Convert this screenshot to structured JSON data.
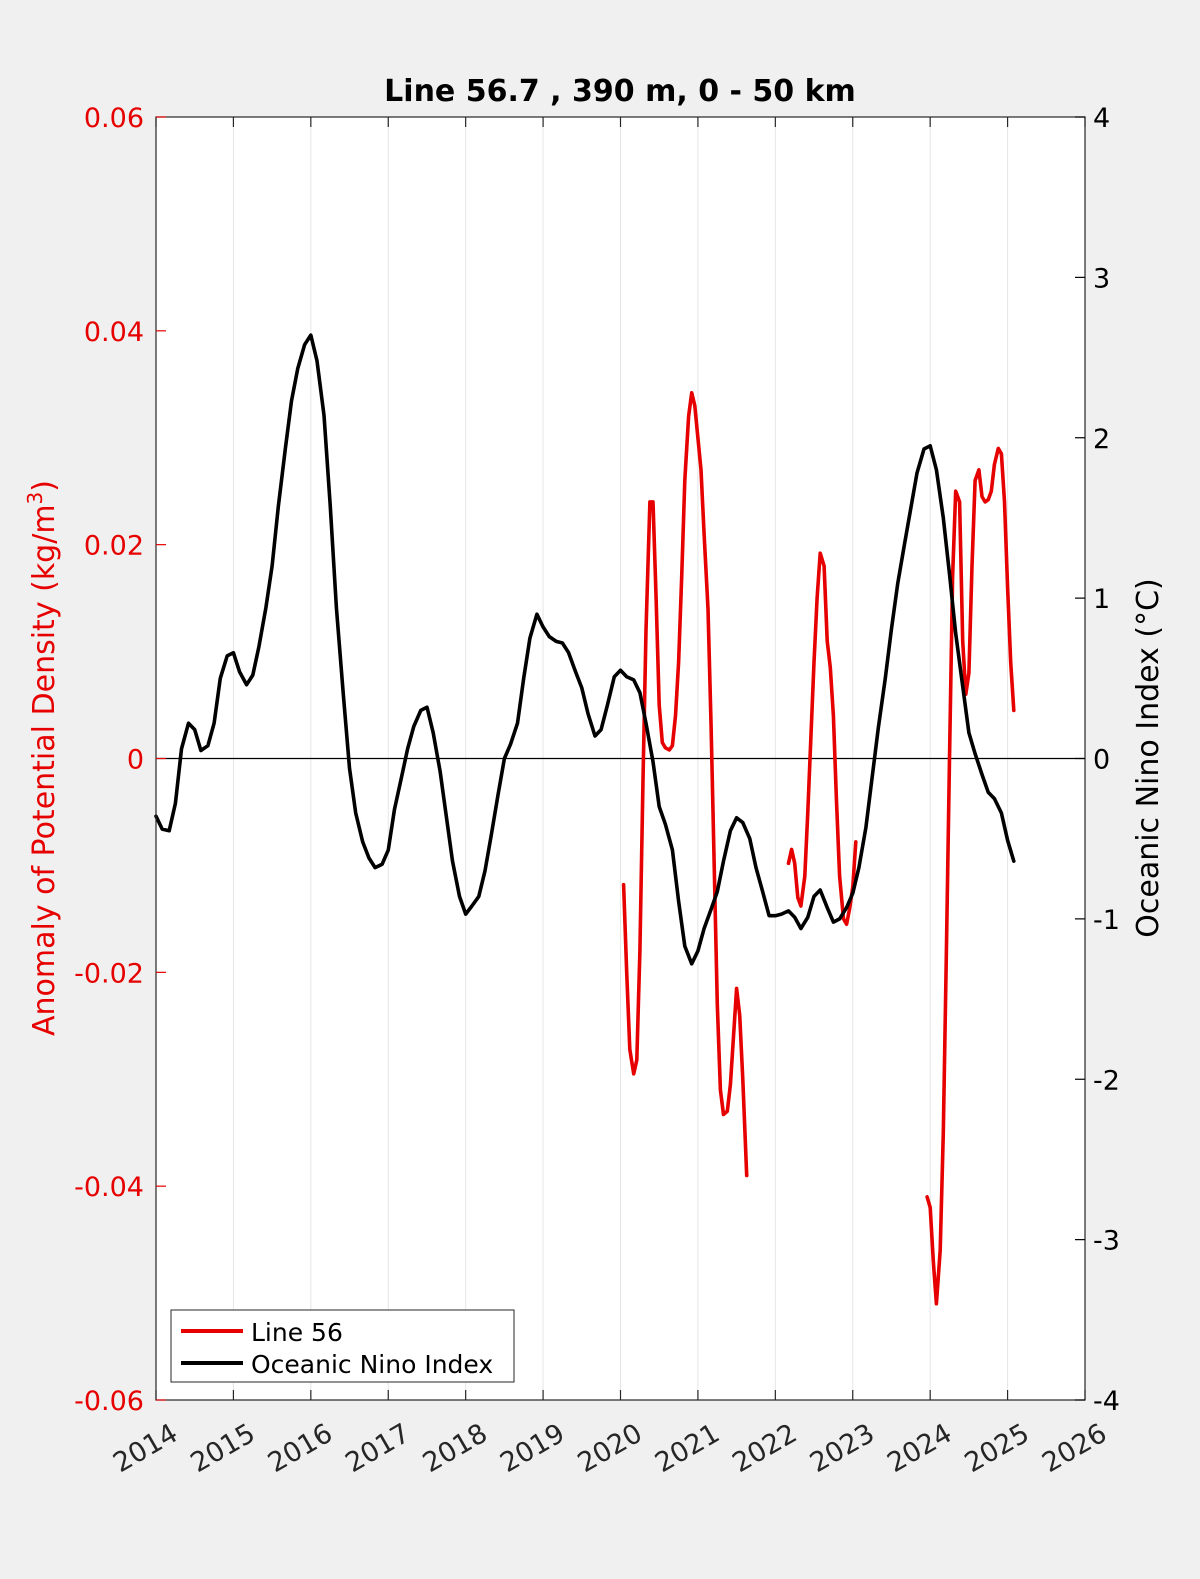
{
  "chart_data": {
    "type": "line",
    "title": "Line 56.7 , 390 m, 0 - 50 km",
    "xlabel": "",
    "ylabel_left": "Anomaly of Potential Density (kg/m³)",
    "ylabel_left_main": "Anomaly of Potential Density (kg/m",
    "ylabel_left_sup": "3",
    "ylabel_left_end": ")",
    "ylabel_right": "Oceanic Nino Index (°C)",
    "xlim": [
      2014,
      2026
    ],
    "ylim_left": [
      -0.06,
      0.06
    ],
    "ylim_right": [
      -4,
      4
    ],
    "x_ticks": [
      2014,
      2015,
      2016,
      2017,
      2018,
      2019,
      2020,
      2021,
      2022,
      2023,
      2024,
      2025,
      2026
    ],
    "x_tick_labels": [
      "2014",
      "2015",
      "2016",
      "2017",
      "2018",
      "2019",
      "2020",
      "2021",
      "2022",
      "2023",
      "2024",
      "2025",
      "2026"
    ],
    "y_left_ticks": [
      0.06,
      0.04,
      0.02,
      0,
      -0.02,
      -0.04,
      -0.06
    ],
    "y_left_tick_labels": [
      "0.06",
      "0.04",
      "0.02",
      "0",
      "-0.02",
      "-0.04",
      "-0.06"
    ],
    "y_right_ticks": [
      4,
      3,
      2,
      1,
      0,
      -1,
      -2,
      -3,
      -4
    ],
    "y_right_tick_labels": [
      "4",
      "3",
      "2",
      "1",
      "0",
      "-1",
      "-2",
      "-3",
      "-4"
    ],
    "grid": "vertical",
    "zero_line": true,
    "legend": {
      "position": "bottom-left",
      "entries": [
        {
          "label": "Line 56",
          "color": "#e60000"
        },
        {
          "label": "Oceanic Nino Index",
          "color": "#000000"
        }
      ]
    },
    "colors": {
      "left_axis": "#e60000",
      "right_axis": "#000000",
      "background": "#f0f0f0",
      "plot_background": "#ffffff"
    },
    "series": [
      {
        "name": "Line 56",
        "axis": "left",
        "color": "#e60000",
        "segments": [
          [
            [
              2020.04,
              -0.0118
            ],
            [
              2020.08,
              -0.02
            ],
            [
              2020.12,
              -0.0272
            ],
            [
              2020.17,
              -0.0295
            ],
            [
              2020.21,
              -0.0282
            ],
            [
              2020.25,
              -0.018
            ],
            [
              2020.29,
              -0.002
            ],
            [
              2020.33,
              0.012
            ],
            [
              2020.38,
              0.024
            ],
            [
              2020.42,
              0.024
            ],
            [
              2020.46,
              0.015
            ],
            [
              2020.5,
              0.005
            ],
            [
              2020.54,
              0.0015
            ],
            [
              2020.58,
              0.001
            ],
            [
              2020.63,
              0.0008
            ],
            [
              2020.67,
              0.0012
            ],
            [
              2020.71,
              0.004
            ],
            [
              2020.75,
              0.009
            ],
            [
              2020.79,
              0.017
            ],
            [
              2020.83,
              0.026
            ],
            [
              2020.88,
              0.032
            ],
            [
              2020.92,
              0.0342
            ],
            [
              2020.96,
              0.033
            ],
            [
              2021.0,
              0.03
            ],
            [
              2021.04,
              0.027
            ],
            [
              2021.08,
              0.021
            ],
            [
              2021.13,
              0.014
            ],
            [
              2021.17,
              0.003
            ],
            [
              2021.21,
              -0.01
            ],
            [
              2021.25,
              -0.023
            ],
            [
              2021.29,
              -0.031
            ],
            [
              2021.33,
              -0.0333
            ],
            [
              2021.38,
              -0.033
            ],
            [
              2021.42,
              -0.0305
            ],
            [
              2021.46,
              -0.026
            ],
            [
              2021.5,
              -0.0215
            ],
            [
              2021.54,
              -0.024
            ],
            [
              2021.58,
              -0.03
            ],
            [
              2021.63,
              -0.039
            ]
          ],
          [
            [
              2022.17,
              -0.0098
            ],
            [
              2022.21,
              -0.0085
            ],
            [
              2022.25,
              -0.0098
            ],
            [
              2022.29,
              -0.013
            ],
            [
              2022.33,
              -0.0138
            ],
            [
              2022.38,
              -0.011
            ],
            [
              2022.42,
              -0.005
            ],
            [
              2022.46,
              0.002
            ],
            [
              2022.5,
              0.009
            ],
            [
              2022.54,
              0.015
            ],
            [
              2022.58,
              0.0192
            ],
            [
              2022.63,
              0.018
            ],
            [
              2022.67,
              0.011
            ],
            [
              2022.71,
              0.0085
            ],
            [
              2022.75,
              0.004
            ],
            [
              2022.79,
              -0.004
            ],
            [
              2022.83,
              -0.011
            ],
            [
              2022.88,
              -0.015
            ],
            [
              2022.92,
              -0.0155
            ],
            [
              2022.96,
              -0.014
            ],
            [
              2023.0,
              -0.012
            ],
            [
              2023.04,
              -0.0078
            ]
          ],
          [
            [
              2023.96,
              -0.041
            ],
            [
              2024.0,
              -0.042
            ],
            [
              2024.04,
              -0.047
            ],
            [
              2024.08,
              -0.051
            ],
            [
              2024.13,
              -0.046
            ],
            [
              2024.17,
              -0.035
            ],
            [
              2024.21,
              -0.018
            ],
            [
              2024.25,
              0.0
            ],
            [
              2024.29,
              0.017
            ],
            [
              2024.33,
              0.025
            ],
            [
              2024.38,
              0.024
            ],
            [
              2024.42,
              0.011
            ],
            [
              2024.46,
              0.006
            ],
            [
              2024.5,
              0.008
            ],
            [
              2024.54,
              0.018
            ],
            [
              2024.58,
              0.026
            ],
            [
              2024.63,
              0.027
            ],
            [
              2024.67,
              0.0245
            ],
            [
              2024.71,
              0.024
            ],
            [
              2024.75,
              0.0242
            ],
            [
              2024.79,
              0.025
            ],
            [
              2024.83,
              0.0275
            ],
            [
              2024.88,
              0.029
            ],
            [
              2024.92,
              0.0285
            ],
            [
              2024.96,
              0.024
            ],
            [
              2025.0,
              0.016
            ],
            [
              2025.04,
              0.009
            ],
            [
              2025.08,
              0.0045
            ]
          ]
        ]
      },
      {
        "name": "Oceanic Nino Index",
        "axis": "right",
        "color": "#000000",
        "points": [
          [
            2014.0,
            -0.36
          ],
          [
            2014.08,
            -0.44
          ],
          [
            2014.17,
            -0.45
          ],
          [
            2014.25,
            -0.28
          ],
          [
            2014.33,
            0.06
          ],
          [
            2014.42,
            0.22
          ],
          [
            2014.5,
            0.18
          ],
          [
            2014.58,
            0.05
          ],
          [
            2014.67,
            0.08
          ],
          [
            2014.75,
            0.22
          ],
          [
            2014.83,
            0.5
          ],
          [
            2014.92,
            0.64
          ],
          [
            2015.0,
            0.66
          ],
          [
            2015.08,
            0.54
          ],
          [
            2015.17,
            0.46
          ],
          [
            2015.25,
            0.52
          ],
          [
            2015.33,
            0.7
          ],
          [
            2015.42,
            0.94
          ],
          [
            2015.5,
            1.2
          ],
          [
            2015.58,
            1.57
          ],
          [
            2015.67,
            1.93
          ],
          [
            2015.75,
            2.23
          ],
          [
            2015.83,
            2.43
          ],
          [
            2015.92,
            2.58
          ],
          [
            2016.0,
            2.64
          ],
          [
            2016.08,
            2.48
          ],
          [
            2016.17,
            2.14
          ],
          [
            2016.25,
            1.58
          ],
          [
            2016.33,
            0.94
          ],
          [
            2016.42,
            0.4
          ],
          [
            2016.5,
            -0.06
          ],
          [
            2016.58,
            -0.34
          ],
          [
            2016.67,
            -0.52
          ],
          [
            2016.75,
            -0.62
          ],
          [
            2016.83,
            -0.68
          ],
          [
            2016.92,
            -0.66
          ],
          [
            2017.0,
            -0.57
          ],
          [
            2017.08,
            -0.32
          ],
          [
            2017.17,
            -0.12
          ],
          [
            2017.25,
            0.06
          ],
          [
            2017.33,
            0.2
          ],
          [
            2017.42,
            0.3
          ],
          [
            2017.5,
            0.32
          ],
          [
            2017.58,
            0.16
          ],
          [
            2017.67,
            -0.08
          ],
          [
            2017.75,
            -0.36
          ],
          [
            2017.83,
            -0.64
          ],
          [
            2017.92,
            -0.86
          ],
          [
            2018.0,
            -0.97
          ],
          [
            2018.08,
            -0.92
          ],
          [
            2018.17,
            -0.86
          ],
          [
            2018.25,
            -0.7
          ],
          [
            2018.33,
            -0.48
          ],
          [
            2018.42,
            -0.22
          ],
          [
            2018.5,
            0.0
          ],
          [
            2018.58,
            0.09
          ],
          [
            2018.67,
            0.22
          ],
          [
            2018.75,
            0.5
          ],
          [
            2018.83,
            0.75
          ],
          [
            2018.92,
            0.9
          ],
          [
            2019.0,
            0.82
          ],
          [
            2019.08,
            0.76
          ],
          [
            2019.17,
            0.73
          ],
          [
            2019.25,
            0.72
          ],
          [
            2019.33,
            0.66
          ],
          [
            2019.42,
            0.54
          ],
          [
            2019.5,
            0.44
          ],
          [
            2019.58,
            0.28
          ],
          [
            2019.67,
            0.14
          ],
          [
            2019.75,
            0.18
          ],
          [
            2019.83,
            0.33
          ],
          [
            2019.92,
            0.51
          ],
          [
            2020.0,
            0.55
          ],
          [
            2020.08,
            0.51
          ],
          [
            2020.17,
            0.49
          ],
          [
            2020.25,
            0.41
          ],
          [
            2020.33,
            0.22
          ],
          [
            2020.42,
            -0.02
          ],
          [
            2020.5,
            -0.3
          ],
          [
            2020.58,
            -0.41
          ],
          [
            2020.67,
            -0.57
          ],
          [
            2020.75,
            -0.89
          ],
          [
            2020.83,
            -1.17
          ],
          [
            2020.92,
            -1.28
          ],
          [
            2021.0,
            -1.2
          ],
          [
            2021.08,
            -1.06
          ],
          [
            2021.17,
            -0.94
          ],
          [
            2021.25,
            -0.83
          ],
          [
            2021.33,
            -0.64
          ],
          [
            2021.42,
            -0.45
          ],
          [
            2021.5,
            -0.37
          ],
          [
            2021.58,
            -0.4
          ],
          [
            2021.67,
            -0.5
          ],
          [
            2021.75,
            -0.68
          ],
          [
            2021.83,
            -0.82
          ],
          [
            2021.92,
            -0.98
          ],
          [
            2022.0,
            -0.98
          ],
          [
            2022.08,
            -0.97
          ],
          [
            2022.17,
            -0.95
          ],
          [
            2022.25,
            -0.99
          ],
          [
            2022.33,
            -1.06
          ],
          [
            2022.42,
            -0.99
          ],
          [
            2022.5,
            -0.86
          ],
          [
            2022.58,
            -0.82
          ],
          [
            2022.67,
            -0.93
          ],
          [
            2022.75,
            -1.02
          ],
          [
            2022.83,
            -1.0
          ],
          [
            2022.92,
            -0.93
          ],
          [
            2023.0,
            -0.84
          ],
          [
            2023.08,
            -0.68
          ],
          [
            2023.17,
            -0.43
          ],
          [
            2023.25,
            -0.12
          ],
          [
            2023.33,
            0.19
          ],
          [
            2023.42,
            0.5
          ],
          [
            2023.5,
            0.81
          ],
          [
            2023.58,
            1.09
          ],
          [
            2023.67,
            1.34
          ],
          [
            2023.75,
            1.56
          ],
          [
            2023.83,
            1.78
          ],
          [
            2023.92,
            1.93
          ],
          [
            2024.0,
            1.95
          ],
          [
            2024.08,
            1.8
          ],
          [
            2024.17,
            1.5
          ],
          [
            2024.25,
            1.15
          ],
          [
            2024.33,
            0.78
          ],
          [
            2024.42,
            0.45
          ],
          [
            2024.5,
            0.16
          ],
          [
            2024.58,
            0.03
          ],
          [
            2024.67,
            -0.1
          ],
          [
            2024.75,
            -0.21
          ],
          [
            2024.83,
            -0.25
          ],
          [
            2024.92,
            -0.34
          ],
          [
            2025.0,
            -0.51
          ],
          [
            2025.08,
            -0.64
          ]
        ]
      }
    ]
  }
}
